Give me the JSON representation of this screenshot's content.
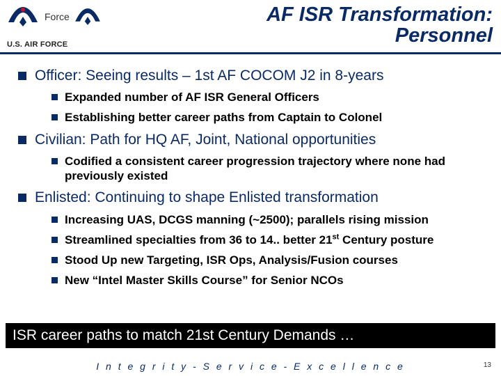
{
  "colors": {
    "navy": "#0a2a66",
    "black": "#000000",
    "white": "#ffffff",
    "red": "#c8102e"
  },
  "header": {
    "small_force_text": "Force",
    "usaf_label": "U.S. AIR FORCE",
    "title_line1": "AF ISR Transformation:",
    "title_line2": "Personnel"
  },
  "bullets": [
    {
      "text": "Officer:  Seeing results – 1st AF COCOM J2 in 8-years",
      "children": [
        {
          "text": "Expanded number of AF ISR General Officers"
        },
        {
          "text": "Establishing better career paths from Captain to Colonel"
        }
      ]
    },
    {
      "text": "Civilian:  Path for HQ AF, Joint, National opportunities",
      "children": [
        {
          "text": "Codified a consistent career progression trajectory where none had previously existed"
        }
      ]
    },
    {
      "text": "Enlisted:  Continuing to shape Enlisted transformation",
      "children": [
        {
          "text": "Increasing UAS, DCGS manning (~2500); parallels rising mission"
        },
        {
          "html": "Streamlined specialties from 36 to 14.. better 21<sup>st</sup> Century posture"
        },
        {
          "text": "Stood Up new Targeting, ISR Ops, Analysis/Fusion courses"
        },
        {
          "text": "New “Intel Master Skills Course” for Senior NCOs"
        }
      ]
    }
  ],
  "banner": "ISR career paths to match 21st Century Demands …",
  "footer": "I n t e g r i t y  -  S e r v i c e  -  E x c e l l e n c e",
  "page_number": "13"
}
